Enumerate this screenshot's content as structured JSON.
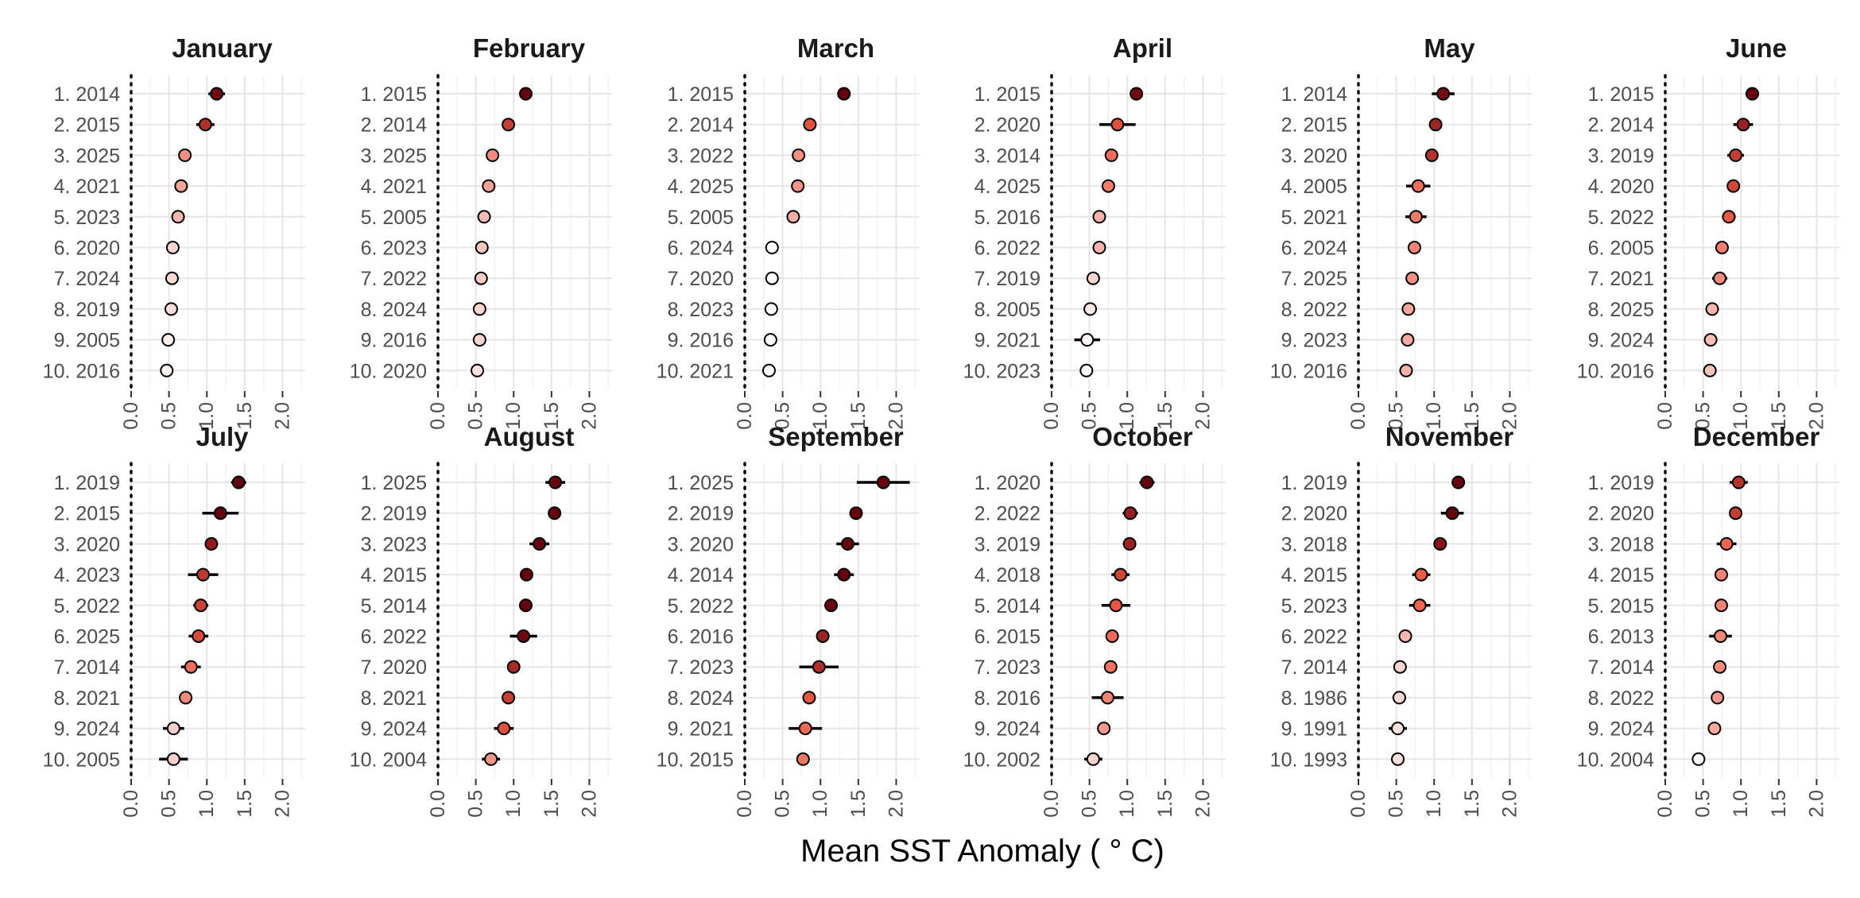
{
  "chart_data": {
    "type": "scatter",
    "subtype": "dot-plot-with-error-bars",
    "xlabel": "Mean SST Anomaly ( ° C)",
    "xlim": [
      0.0,
      2.3
    ],
    "xticks": [
      "0.0",
      "0.5",
      "1.0",
      "1.5",
      "2.0"
    ],
    "grid": true,
    "reference_line_x": 0,
    "color_scale": {
      "low": "#ffffff",
      "mid": "#ef5a45",
      "high": "#67000d"
    },
    "panels": [
      {
        "title": "January",
        "labels": [
          "1. 2014",
          "2. 2015",
          "3. 2025",
          "4. 2021",
          "5. 2023",
          "6. 2020",
          "7. 2024",
          "8. 2019",
          "9. 2005",
          "10. 2016"
        ],
        "values": [
          1.13,
          0.98,
          0.71,
          0.66,
          0.62,
          0.55,
          0.54,
          0.53,
          0.49,
          0.47
        ],
        "errors": [
          0.11,
          0.12,
          0.02,
          0.03,
          0.04,
          0.07,
          0.03,
          0.04,
          0.05,
          0.0
        ]
      },
      {
        "title": "February",
        "labels": [
          "1. 2015",
          "2. 2014",
          "3. 2025",
          "4. 2021",
          "5. 2005",
          "6. 2023",
          "7. 2022",
          "8. 2024",
          "9. 2016",
          "10. 2020"
        ],
        "values": [
          1.16,
          0.93,
          0.72,
          0.67,
          0.61,
          0.58,
          0.57,
          0.55,
          0.55,
          0.52
        ],
        "errors": [
          0.07,
          0.02,
          0.01,
          0.01,
          0.02,
          0.01,
          0.08,
          0.01,
          0.01,
          0.01
        ]
      },
      {
        "title": "March",
        "labels": [
          "1. 2015",
          "2. 2014",
          "3. 2022",
          "4. 2025",
          "5. 2005",
          "6. 2024",
          "7. 2020",
          "8. 2023",
          "9. 2016",
          "10. 2021"
        ],
        "values": [
          1.31,
          0.86,
          0.71,
          0.7,
          0.64,
          0.36,
          0.36,
          0.35,
          0.34,
          0.32
        ],
        "errors": [
          0.0,
          0.02,
          0.01,
          0.01,
          0.08,
          0.01,
          0.02,
          0.01,
          0.01,
          0.07
        ]
      },
      {
        "title": "April",
        "labels": [
          "1. 2015",
          "2. 2020",
          "3. 2014",
          "4. 2025",
          "5. 2016",
          "6. 2022",
          "7. 2019",
          "8. 2005",
          "9. 2021",
          "10. 2023"
        ],
        "values": [
          1.12,
          0.87,
          0.79,
          0.75,
          0.63,
          0.63,
          0.55,
          0.51,
          0.47,
          0.46
        ],
        "errors": [
          0.02,
          0.24,
          0.02,
          0.01,
          0.01,
          0.01,
          0.01,
          0.07,
          0.17,
          0.0
        ]
      },
      {
        "title": "May",
        "labels": [
          "1. 2014",
          "2. 2015",
          "3. 2020",
          "4. 2005",
          "5. 2021",
          "6. 2024",
          "7. 2025",
          "8. 2022",
          "9. 2023",
          "10. 2016"
        ],
        "values": [
          1.12,
          1.02,
          0.97,
          0.79,
          0.76,
          0.74,
          0.71,
          0.66,
          0.65,
          0.63
        ],
        "errors": [
          0.15,
          0.03,
          0.05,
          0.16,
          0.14,
          0.01,
          0.02,
          0.06,
          0.02,
          0.08
        ]
      },
      {
        "title": "June",
        "labels": [
          "1. 2015",
          "2. 2014",
          "3. 2019",
          "4. 2020",
          "5. 2022",
          "6. 2005",
          "7. 2021",
          "8. 2025",
          "9. 2024",
          "10. 2016"
        ],
        "values": [
          1.15,
          1.03,
          0.93,
          0.9,
          0.84,
          0.75,
          0.72,
          0.62,
          0.6,
          0.59
        ],
        "errors": [
          0.09,
          0.13,
          0.11,
          0.04,
          0.09,
          0.01,
          0.1,
          0.05,
          0.05,
          0.0
        ]
      }
    ]
  },
  "chart_data_row2": [
    {
      "title": "July",
      "labels": [
        "1. 2019",
        "2. 2015",
        "3. 2020",
        "4. 2023",
        "5. 2022",
        "6. 2025",
        "7. 2014",
        "8. 2021",
        "9. 2024",
        "10. 2005"
      ],
      "values": [
        1.42,
        1.18,
        1.06,
        0.95,
        0.92,
        0.89,
        0.79,
        0.72,
        0.56,
        0.56
      ],
      "errors": [
        0.1,
        0.24,
        0.02,
        0.2,
        0.1,
        0.13,
        0.13,
        0.08,
        0.14,
        0.19
      ]
    },
    {
      "title": "August",
      "labels": [
        "1. 2025",
        "2. 2019",
        "3. 2023",
        "4. 2015",
        "5. 2014",
        "6. 2022",
        "7. 2020",
        "8. 2021",
        "9. 2024",
        "10. 2004"
      ],
      "values": [
        1.55,
        1.54,
        1.34,
        1.17,
        1.16,
        1.13,
        1.0,
        0.93,
        0.87,
        0.7
      ],
      "errors": [
        0.13,
        0.06,
        0.13,
        0.01,
        0.01,
        0.18,
        0.05,
        0.01,
        0.13,
        0.12
      ]
    },
    {
      "title": "September",
      "labels": [
        "1. 2025",
        "2. 2019",
        "3. 2020",
        "4. 2014",
        "5. 2022",
        "6. 2016",
        "7. 2023",
        "8. 2024",
        "9. 2021",
        "10. 2015"
      ],
      "values": [
        1.83,
        1.47,
        1.36,
        1.31,
        1.14,
        1.03,
        0.98,
        0.85,
        0.8,
        0.77
      ],
      "errors": [
        0.35,
        0.08,
        0.15,
        0.13,
        0.08,
        0.01,
        0.26,
        0.06,
        0.22,
        0.0
      ]
    },
    {
      "title": "October",
      "labels": [
        "1. 2020",
        "2. 2022",
        "3. 2019",
        "4. 2018",
        "5. 2014",
        "6. 2015",
        "7. 2023",
        "8. 2016",
        "9. 2024",
        "10. 2002"
      ],
      "values": [
        1.26,
        1.04,
        1.03,
        0.91,
        0.85,
        0.8,
        0.78,
        0.74,
        0.69,
        0.55
      ],
      "errors": [
        0.1,
        0.1,
        0.07,
        0.12,
        0.19,
        0.07,
        0.07,
        0.21,
        0.08,
        0.12
      ]
    },
    {
      "title": "November",
      "labels": [
        "1. 2019",
        "2. 2020",
        "3. 2018",
        "4. 2015",
        "5. 2023",
        "6. 2022",
        "7. 2014",
        "8. 1986",
        "9. 1991",
        "10. 1993"
      ],
      "values": [
        1.32,
        1.24,
        1.08,
        0.83,
        0.81,
        0.62,
        0.55,
        0.54,
        0.52,
        0.52
      ],
      "errors": [
        0.07,
        0.15,
        0.02,
        0.12,
        0.14,
        0.01,
        0.01,
        0.09,
        0.12,
        0.01
      ]
    },
    {
      "title": "December",
      "labels": [
        "1. 2019",
        "2. 2020",
        "3. 2018",
        "4. 2015",
        "5. 2015",
        "6. 2013",
        "7. 2014",
        "8. 2022",
        "9. 2024",
        "10. 2004"
      ],
      "values": [
        0.97,
        0.93,
        0.81,
        0.74,
        0.74,
        0.73,
        0.72,
        0.69,
        0.65,
        0.44
      ],
      "errors": [
        0.12,
        0.02,
        0.13,
        0.01,
        0.01,
        0.15,
        0.01,
        0.07,
        0.05,
        0.01
      ]
    }
  ]
}
